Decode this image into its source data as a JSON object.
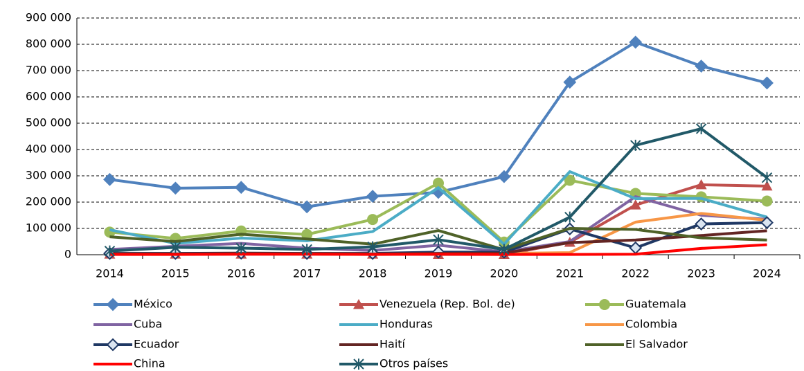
{
  "chart_data": {
    "type": "line",
    "categories": [
      "2014",
      "2015",
      "2016",
      "2017",
      "2018",
      "2019",
      "2020",
      "2021",
      "2022",
      "2023",
      "2024"
    ],
    "ylim": [
      0,
      900000
    ],
    "yticks": [
      0,
      {
        "value": 100000,
        "label": "100 000"
      },
      {
        "value": 200000,
        "label": "200 000"
      },
      {
        "value": 300000,
        "label": "300 000"
      },
      {
        "value": 400000,
        "label": "400 000"
      },
      {
        "value": 500000,
        "label": "500 000"
      },
      {
        "value": 600000,
        "label": "600 000"
      },
      {
        "value": 700000,
        "label": "700 000"
      },
      {
        "value": 800000,
        "label": "800 000"
      },
      {
        "value": 900000,
        "label": "900 000"
      }
    ],
    "grid": true,
    "legend": "bottom",
    "series": [
      {
        "name": "México",
        "color": "#4f81bd",
        "marker": "diamond",
        "values": [
          286000,
          253000,
          256000,
          182000,
          222000,
          237000,
          297000,
          656000,
          808000,
          717000,
          653000
        ]
      },
      {
        "name": "Venezuela (Rep. Bol. de)",
        "color": "#c0504d",
        "marker": "triangle",
        "values": [
          2000,
          2000,
          2000,
          2000,
          2000,
          1000,
          1000,
          47000,
          189000,
          266000,
          261000
        ]
      },
      {
        "name": "Guatemala",
        "color": "#9bbb59",
        "marker": "circle",
        "values": [
          86000,
          62000,
          90000,
          77000,
          134000,
          272000,
          48000,
          283000,
          233000,
          220000,
          204000
        ]
      },
      {
        "name": "Cuba",
        "color": "#8064a2",
        "marker": "none",
        "values": [
          20000,
          32000,
          43000,
          25000,
          16000,
          36000,
          11000,
          50000,
          221000,
          150000,
          135000
        ]
      },
      {
        "name": "Honduras",
        "color": "#4bacc6",
        "marker": "none",
        "values": [
          95000,
          43000,
          63000,
          53000,
          88000,
          255000,
          40000,
          316000,
          213000,
          214000,
          143000
        ]
      },
      {
        "name": "Colombia",
        "color": "#f79646",
        "marker": "none",
        "values": [
          5000,
          5000,
          6000,
          5000,
          5000,
          6000,
          5000,
          8000,
          124000,
          157000,
          131000
        ]
      },
      {
        "name": "Ecuador",
        "color": "#1f3864",
        "marker": "open-diamond",
        "values": [
          5000,
          5000,
          6000,
          5000,
          5000,
          10000,
          10000,
          98000,
          26000,
          117000,
          122000
        ]
      },
      {
        "name": "Haití",
        "color": "#632523",
        "marker": "none",
        "values": [
          3000,
          3000,
          5000,
          4000,
          3000,
          5000,
          6000,
          46000,
          56000,
          73000,
          91000
        ]
      },
      {
        "name": "El Salvador",
        "color": "#4f6228",
        "marker": "none",
        "values": [
          68000,
          50000,
          78000,
          60000,
          40000,
          92000,
          19000,
          100000,
          96000,
          64000,
          56000
        ]
      },
      {
        "name": "China",
        "color": "#ff0000",
        "marker": "none",
        "values": [
          1000,
          1000,
          2000,
          2000,
          1000,
          2000,
          1000,
          1000,
          2000,
          24000,
          38000
        ]
      },
      {
        "name": "Otros países",
        "color": "#215968",
        "marker": "star",
        "values": [
          14000,
          28000,
          25000,
          20000,
          30000,
          57000,
          20000,
          143000,
          416000,
          479000,
          293000
        ]
      }
    ]
  }
}
